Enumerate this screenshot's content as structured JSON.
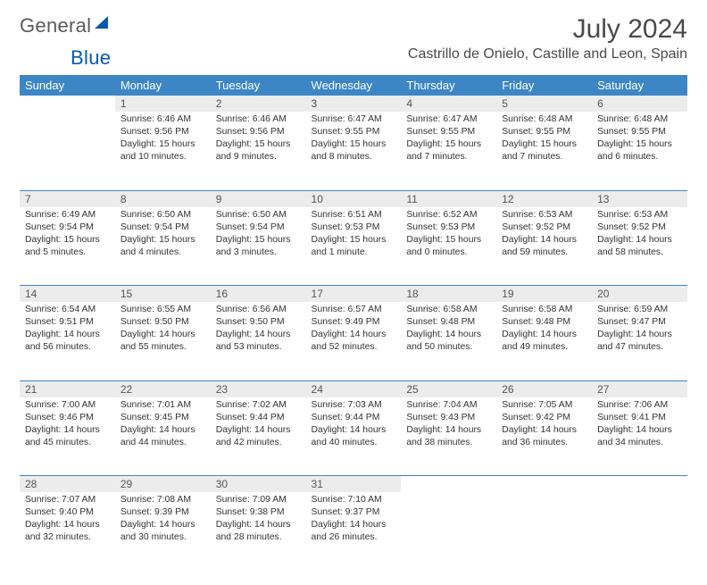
{
  "brand": {
    "word1": "General",
    "word2": "Blue",
    "sail_color": "#0b5aa8"
  },
  "title": "July 2024",
  "location": "Castrillo de Onielo, Castille and Leon, Spain",
  "header_bg": "#3d86c6",
  "daynum_bg": "#ececec",
  "border_color": "#3d86c6",
  "weekdays": [
    "Sunday",
    "Monday",
    "Tuesday",
    "Wednesday",
    "Thursday",
    "Friday",
    "Saturday"
  ],
  "weeks": [
    {
      "days": [
        {
          "n": "",
          "sunrise": "",
          "sunset": "",
          "daylight": ""
        },
        {
          "n": "1",
          "sunrise": "Sunrise: 6:46 AM",
          "sunset": "Sunset: 9:56 PM",
          "daylight": "Daylight: 15 hours and 10 minutes."
        },
        {
          "n": "2",
          "sunrise": "Sunrise: 6:46 AM",
          "sunset": "Sunset: 9:56 PM",
          "daylight": "Daylight: 15 hours and 9 minutes."
        },
        {
          "n": "3",
          "sunrise": "Sunrise: 6:47 AM",
          "sunset": "Sunset: 9:55 PM",
          "daylight": "Daylight: 15 hours and 8 minutes."
        },
        {
          "n": "4",
          "sunrise": "Sunrise: 6:47 AM",
          "sunset": "Sunset: 9:55 PM",
          "daylight": "Daylight: 15 hours and 7 minutes."
        },
        {
          "n": "5",
          "sunrise": "Sunrise: 6:48 AM",
          "sunset": "Sunset: 9:55 PM",
          "daylight": "Daylight: 15 hours and 7 minutes."
        },
        {
          "n": "6",
          "sunrise": "Sunrise: 6:48 AM",
          "sunset": "Sunset: 9:55 PM",
          "daylight": "Daylight: 15 hours and 6 minutes."
        }
      ]
    },
    {
      "days": [
        {
          "n": "7",
          "sunrise": "Sunrise: 6:49 AM",
          "sunset": "Sunset: 9:54 PM",
          "daylight": "Daylight: 15 hours and 5 minutes."
        },
        {
          "n": "8",
          "sunrise": "Sunrise: 6:50 AM",
          "sunset": "Sunset: 9:54 PM",
          "daylight": "Daylight: 15 hours and 4 minutes."
        },
        {
          "n": "9",
          "sunrise": "Sunrise: 6:50 AM",
          "sunset": "Sunset: 9:54 PM",
          "daylight": "Daylight: 15 hours and 3 minutes."
        },
        {
          "n": "10",
          "sunrise": "Sunrise: 6:51 AM",
          "sunset": "Sunset: 9:53 PM",
          "daylight": "Daylight: 15 hours and 1 minute."
        },
        {
          "n": "11",
          "sunrise": "Sunrise: 6:52 AM",
          "sunset": "Sunset: 9:53 PM",
          "daylight": "Daylight: 15 hours and 0 minutes."
        },
        {
          "n": "12",
          "sunrise": "Sunrise: 6:53 AM",
          "sunset": "Sunset: 9:52 PM",
          "daylight": "Daylight: 14 hours and 59 minutes."
        },
        {
          "n": "13",
          "sunrise": "Sunrise: 6:53 AM",
          "sunset": "Sunset: 9:52 PM",
          "daylight": "Daylight: 14 hours and 58 minutes."
        }
      ]
    },
    {
      "days": [
        {
          "n": "14",
          "sunrise": "Sunrise: 6:54 AM",
          "sunset": "Sunset: 9:51 PM",
          "daylight": "Daylight: 14 hours and 56 minutes."
        },
        {
          "n": "15",
          "sunrise": "Sunrise: 6:55 AM",
          "sunset": "Sunset: 9:50 PM",
          "daylight": "Daylight: 14 hours and 55 minutes."
        },
        {
          "n": "16",
          "sunrise": "Sunrise: 6:56 AM",
          "sunset": "Sunset: 9:50 PM",
          "daylight": "Daylight: 14 hours and 53 minutes."
        },
        {
          "n": "17",
          "sunrise": "Sunrise: 6:57 AM",
          "sunset": "Sunset: 9:49 PM",
          "daylight": "Daylight: 14 hours and 52 minutes."
        },
        {
          "n": "18",
          "sunrise": "Sunrise: 6:58 AM",
          "sunset": "Sunset: 9:48 PM",
          "daylight": "Daylight: 14 hours and 50 minutes."
        },
        {
          "n": "19",
          "sunrise": "Sunrise: 6:58 AM",
          "sunset": "Sunset: 9:48 PM",
          "daylight": "Daylight: 14 hours and 49 minutes."
        },
        {
          "n": "20",
          "sunrise": "Sunrise: 6:59 AM",
          "sunset": "Sunset: 9:47 PM",
          "daylight": "Daylight: 14 hours and 47 minutes."
        }
      ]
    },
    {
      "days": [
        {
          "n": "21",
          "sunrise": "Sunrise: 7:00 AM",
          "sunset": "Sunset: 9:46 PM",
          "daylight": "Daylight: 14 hours and 45 minutes."
        },
        {
          "n": "22",
          "sunrise": "Sunrise: 7:01 AM",
          "sunset": "Sunset: 9:45 PM",
          "daylight": "Daylight: 14 hours and 44 minutes."
        },
        {
          "n": "23",
          "sunrise": "Sunrise: 7:02 AM",
          "sunset": "Sunset: 9:44 PM",
          "daylight": "Daylight: 14 hours and 42 minutes."
        },
        {
          "n": "24",
          "sunrise": "Sunrise: 7:03 AM",
          "sunset": "Sunset: 9:44 PM",
          "daylight": "Daylight: 14 hours and 40 minutes."
        },
        {
          "n": "25",
          "sunrise": "Sunrise: 7:04 AM",
          "sunset": "Sunset: 9:43 PM",
          "daylight": "Daylight: 14 hours and 38 minutes."
        },
        {
          "n": "26",
          "sunrise": "Sunrise: 7:05 AM",
          "sunset": "Sunset: 9:42 PM",
          "daylight": "Daylight: 14 hours and 36 minutes."
        },
        {
          "n": "27",
          "sunrise": "Sunrise: 7:06 AM",
          "sunset": "Sunset: 9:41 PM",
          "daylight": "Daylight: 14 hours and 34 minutes."
        }
      ]
    },
    {
      "days": [
        {
          "n": "28",
          "sunrise": "Sunrise: 7:07 AM",
          "sunset": "Sunset: 9:40 PM",
          "daylight": "Daylight: 14 hours and 32 minutes."
        },
        {
          "n": "29",
          "sunrise": "Sunrise: 7:08 AM",
          "sunset": "Sunset: 9:39 PM",
          "daylight": "Daylight: 14 hours and 30 minutes."
        },
        {
          "n": "30",
          "sunrise": "Sunrise: 7:09 AM",
          "sunset": "Sunset: 9:38 PM",
          "daylight": "Daylight: 14 hours and 28 minutes."
        },
        {
          "n": "31",
          "sunrise": "Sunrise: 7:10 AM",
          "sunset": "Sunset: 9:37 PM",
          "daylight": "Daylight: 14 hours and 26 minutes."
        },
        {
          "n": "",
          "sunrise": "",
          "sunset": "",
          "daylight": ""
        },
        {
          "n": "",
          "sunrise": "",
          "sunset": "",
          "daylight": ""
        },
        {
          "n": "",
          "sunrise": "",
          "sunset": "",
          "daylight": ""
        }
      ]
    }
  ]
}
